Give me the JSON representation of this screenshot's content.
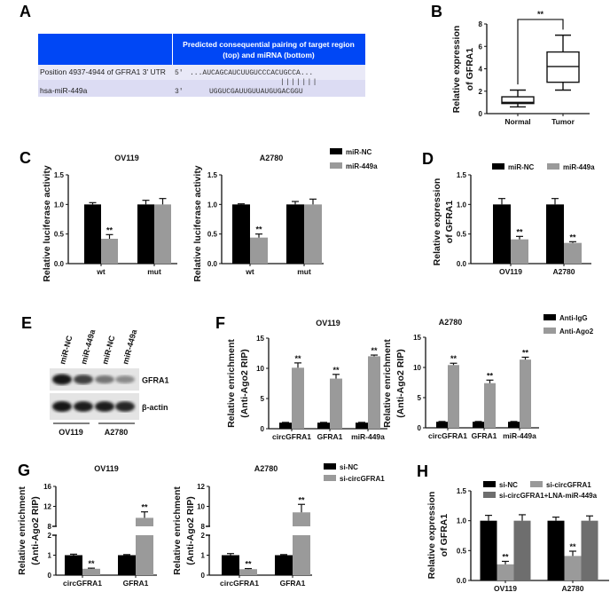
{
  "panel_labels": [
    "A",
    "B",
    "C",
    "D",
    "E",
    "F",
    "G",
    "H"
  ],
  "panel_a": {
    "header": [
      "Predicted consequential pairing of target region",
      "(top) and miRNA (bottom)"
    ],
    "header_color": "#0047f5",
    "rows": [
      {
        "label": "Position 4937-4944 of GFRA1 3' UTR",
        "end": "5'",
        "sequence": "...AUCAGCAUCUUGUCCCACUGCCA..."
      },
      {
        "label": "hsa-miR-449a",
        "end": "3'",
        "sequence": "UGGUCGAUUGUUAUGUGACGGU"
      }
    ],
    "pairing": "|||||||",
    "mirna_label_color": "#3a6fc4"
  },
  "panel_e": {
    "lanes": [
      "miR-NC",
      "miR-449a",
      "miR-NC",
      "miR-449a"
    ],
    "bands": [
      {
        "label": "GFRA1",
        "intensity": [
          1.0,
          0.8,
          0.55,
          0.45
        ]
      },
      {
        "label": "β-actin",
        "intensity": [
          1.0,
          0.95,
          0.95,
          0.92
        ]
      }
    ],
    "groups": [
      "OV119",
      "A2780"
    ]
  },
  "chart_data": [
    {
      "panel": "B",
      "type": "box",
      "ylabel": [
        "Relative expression",
        "of GFRA1"
      ],
      "ylim": [
        0,
        8
      ],
      "yticks": [
        0,
        2,
        4,
        6,
        8
      ],
      "ytick_labels": [
        "0",
        "2",
        "4",
        "6",
        "8"
      ],
      "categories": [
        "Normal",
        "Tumor"
      ],
      "boxes": [
        {
          "min": 0.6,
          "q1": 0.9,
          "median": 1.0,
          "q3": 1.5,
          "max": 2.1
        },
        {
          "min": 2.1,
          "q1": 2.8,
          "median": 4.2,
          "q3": 5.5,
          "max": 7.0
        }
      ],
      "significance": "**"
    },
    {
      "panel": "C",
      "type": "bar",
      "title": "OV119",
      "ylabel": [
        "Relative luciferase activity"
      ],
      "ylim": [
        0,
        1.5
      ],
      "yticks": [
        0,
        0.5,
        1,
        1.5
      ],
      "ytick_labels": [
        "0.0",
        "0.5",
        "1.0",
        "1.5"
      ],
      "categories": [
        "wt",
        "mut"
      ],
      "series": [
        {
          "name": "miR-NC",
          "color": "#000000",
          "values": [
            1.0,
            1.0
          ],
          "errors": [
            0.03,
            0.07
          ],
          "sig": [
            "",
            ""
          ]
        },
        {
          "name": "miR-449a",
          "color": "#9a9a9a",
          "values": [
            0.42,
            1.0
          ],
          "errors": [
            0.07,
            0.1
          ],
          "sig": [
            "**",
            ""
          ]
        }
      ]
    },
    {
      "panel": "C",
      "type": "bar",
      "title": "A2780",
      "ylabel": [
        "Relative luciferase activity"
      ],
      "ylim": [
        0,
        1.5
      ],
      "yticks": [
        0,
        0.5,
        1,
        1.5
      ],
      "ytick_labels": [
        "0.0",
        "0.5",
        "1.0",
        "1.5"
      ],
      "categories": [
        "wt",
        "mut"
      ],
      "legend": "right",
      "series": [
        {
          "name": "miR-NC",
          "color": "#000000",
          "values": [
            1.0,
            1.0
          ],
          "errors": [
            0.01,
            0.05
          ],
          "sig": [
            "",
            ""
          ]
        },
        {
          "name": "miR-449a",
          "color": "#9a9a9a",
          "values": [
            0.44,
            1.0
          ],
          "errors": [
            0.06,
            0.09
          ],
          "sig": [
            "**",
            ""
          ]
        }
      ]
    },
    {
      "panel": "D",
      "type": "bar",
      "ylabel": [
        "Relative expression",
        "of GFRA1"
      ],
      "ylim": [
        0,
        1.5
      ],
      "yticks": [
        0,
        0.5,
        1,
        1.5
      ],
      "ytick_labels": [
        "0.0",
        "0.5",
        "1.0",
        "1.5"
      ],
      "categories": [
        "OV119",
        "A2780"
      ],
      "legend": "top",
      "series": [
        {
          "name": "miR-NC",
          "color": "#000000",
          "values": [
            1.0,
            1.0
          ],
          "errors": [
            0.1,
            0.1
          ],
          "sig": [
            "",
            ""
          ]
        },
        {
          "name": "miR-449a",
          "color": "#9a9a9a",
          "values": [
            0.41,
            0.35
          ],
          "errors": [
            0.05,
            0.02
          ],
          "sig": [
            "**",
            "**"
          ]
        }
      ]
    },
    {
      "panel": "F",
      "type": "bar",
      "title": "OV119",
      "ylabel": [
        "Relative enrichment",
        "(Anti-Ago2 RIP)"
      ],
      "ylim": [
        0,
        15
      ],
      "yticks": [
        0,
        5,
        10,
        15
      ],
      "ytick_labels": [
        "0",
        "5",
        "10",
        "15"
      ],
      "categories": [
        "circGFRA1",
        "GFRA1",
        "miR-449a"
      ],
      "series": [
        {
          "name": "Anti-IgG",
          "color": "#000000",
          "values": [
            1.0,
            1.0,
            1.0
          ],
          "errors": [
            0.05,
            0.05,
            0.05
          ],
          "sig": [
            "",
            "",
            ""
          ]
        },
        {
          "name": "Anti-Ago2",
          "color": "#9a9a9a",
          "values": [
            10.1,
            8.3,
            12.0
          ],
          "errors": [
            0.8,
            0.7,
            0.2
          ],
          "sig": [
            "**",
            "**",
            "**"
          ]
        }
      ]
    },
    {
      "panel": "F",
      "type": "bar",
      "title": "A2780",
      "ylabel": [
        "Relative enrichment",
        "(Anti-Ago2 RIP)"
      ],
      "ylim": [
        0,
        15
      ],
      "yticks": [
        0,
        5,
        10,
        15
      ],
      "ytick_labels": [
        "0",
        "5",
        "10",
        "15"
      ],
      "categories": [
        "circGFRA1",
        "GFRA1",
        "miR-449a"
      ],
      "legend": "right",
      "series": [
        {
          "name": "Anti-IgG",
          "color": "#000000",
          "values": [
            1.0,
            1.0,
            1.0
          ],
          "errors": [
            0.05,
            0.05,
            0.05
          ],
          "sig": [
            "",
            "",
            ""
          ]
        },
        {
          "name": "Anti-Ago2",
          "color": "#9a9a9a",
          "values": [
            10.4,
            7.4,
            11.3
          ],
          "errors": [
            0.3,
            0.5,
            0.4
          ],
          "sig": [
            "**",
            "**",
            "**"
          ]
        }
      ]
    },
    {
      "panel": "G",
      "type": "bar",
      "title": "OV119",
      "ylabel": [
        "Relative enrichment",
        "(Anti-Ago2 RIP)"
      ],
      "ylim_segments": [
        [
          0,
          2
        ],
        [
          8,
          16
        ]
      ],
      "yticks": [
        0,
        1,
        2,
        8,
        12,
        16
      ],
      "ytick_labels": [
        "0",
        "1",
        "2",
        "8",
        "12",
        "16"
      ],
      "categories": [
        "circGFRA1",
        "GFRA1"
      ],
      "series": [
        {
          "name": "si-NC",
          "color": "#000000",
          "values": [
            1.0,
            1.0
          ],
          "errors": [
            0.05,
            0.03
          ],
          "sig": [
            "",
            ""
          ]
        },
        {
          "name": "si-circGFRA1",
          "color": "#9a9a9a",
          "values": [
            0.32,
            9.7
          ],
          "errors": [
            0.03,
            1.2
          ],
          "sig": [
            "**",
            "**"
          ]
        }
      ]
    },
    {
      "panel": "G",
      "type": "bar",
      "title": "A2780",
      "ylabel": [
        "Relative enrichment",
        "(Anti-Ago2 RIP)"
      ],
      "ylim_segments": [
        [
          0,
          2
        ],
        [
          8,
          12
        ]
      ],
      "yticks": [
        0,
        1,
        2,
        8,
        10,
        12
      ],
      "ytick_labels": [
        "0",
        "1",
        "2",
        "8",
        "10",
        "12"
      ],
      "categories": [
        "circGFRA1",
        "GFRA1"
      ],
      "legend": "right",
      "series": [
        {
          "name": "si-NC",
          "color": "#000000",
          "values": [
            1.0,
            1.0
          ],
          "errors": [
            0.08,
            0.03
          ],
          "sig": [
            "",
            ""
          ]
        },
        {
          "name": "si-circGFRA1",
          "color": "#9a9a9a",
          "values": [
            0.3,
            9.4
          ],
          "errors": [
            0.03,
            0.8
          ],
          "sig": [
            "**",
            "**"
          ]
        }
      ]
    },
    {
      "panel": "H",
      "type": "bar",
      "ylabel": [
        "Relative expression",
        "of GFRA1"
      ],
      "ylim": [
        0,
        1.5
      ],
      "yticks": [
        0,
        0.5,
        1,
        1.5
      ],
      "ytick_labels": [
        "0.0",
        "0.5",
        "1.0",
        "1.5"
      ],
      "categories": [
        "OV119",
        "A2780"
      ],
      "legend": "top",
      "series": [
        {
          "name": "si-NC",
          "color": "#000000",
          "values": [
            1.0,
            1.0
          ],
          "errors": [
            0.09,
            0.06
          ],
          "sig": [
            "",
            ""
          ]
        },
        {
          "name": "si-circGFRA1",
          "color": "#9a9a9a",
          "values": [
            0.27,
            0.41
          ],
          "errors": [
            0.05,
            0.08
          ],
          "sig": [
            "**",
            "**"
          ]
        },
        {
          "name": "si-circGFRA1+LNA-miR-449a",
          "color": "#6e6e6e",
          "values": [
            1.0,
            1.0
          ],
          "errors": [
            0.1,
            0.08
          ],
          "sig": [
            "",
            ""
          ]
        }
      ]
    }
  ]
}
